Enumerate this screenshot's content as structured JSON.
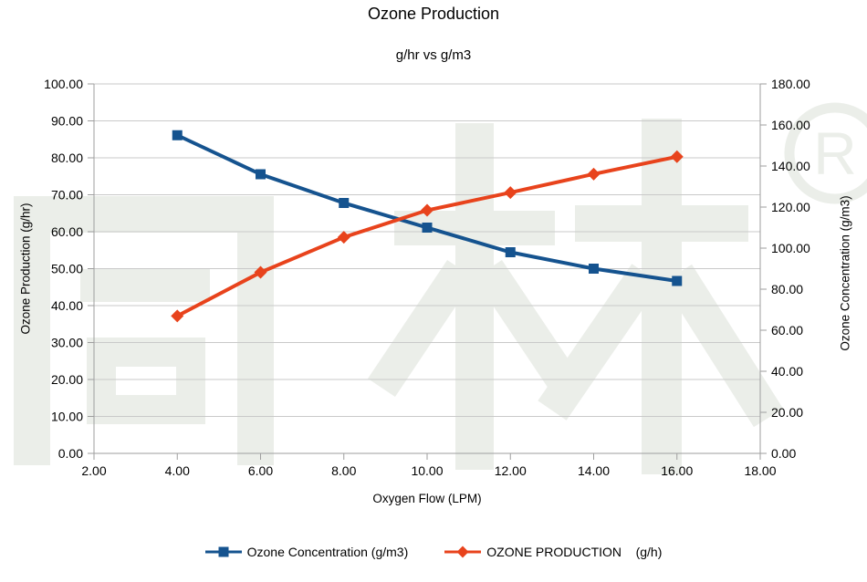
{
  "title": "Ozone Production",
  "subtitle": "g/hr vs g/m3",
  "watermark": {
    "text": "同林",
    "registered_mark": "R",
    "color": "#ebeee9"
  },
  "chart_data": {
    "type": "line",
    "title": "Ozone Production",
    "subtitle": "g/hr vs g/m3",
    "xlabel": "Oxygen Flow (LPM)",
    "grid": "horizontal",
    "legend_position": "bottom-center",
    "x": [
      4,
      6,
      8,
      10,
      12,
      14,
      16
    ],
    "x_axis": {
      "min": 2,
      "max": 18,
      "step": 2,
      "tick_labels": [
        "2.00",
        "4.00",
        "6.00",
        "8.00",
        "10.00",
        "12.00",
        "14.00",
        "16.00",
        "18.00"
      ]
    },
    "left_axis": {
      "label": "Ozone Production (g/hr)",
      "min": 0,
      "max": 100,
      "step": 10,
      "tick_labels": [
        "0.00",
        "10.00",
        "20.00",
        "30.00",
        "40.00",
        "50.00",
        "60.00",
        "70.00",
        "80.00",
        "90.00",
        "100.00"
      ]
    },
    "right_axis": {
      "label": "Ozone Concentration (g/m3)",
      "min": 0,
      "max": 180,
      "step": 20,
      "tick_labels": [
        "0.00",
        "20.00",
        "40.00",
        "60.00",
        "80.00",
        "100.00",
        "120.00",
        "140.00",
        "160.00",
        "180.00"
      ]
    },
    "series": [
      {
        "name": "Ozone Concentration (g/m3)",
        "axis": "right",
        "marker": "square",
        "color": "#15538f",
        "values": [
          155,
          136,
          122,
          110,
          98,
          90,
          84
        ]
      },
      {
        "name": "OZONE PRODUCTION    (g/h)",
        "axis": "left",
        "marker": "diamond",
        "color": "#e8431c",
        "values": [
          37.2,
          49.0,
          58.5,
          65.8,
          70.6,
          75.6,
          80.3
        ]
      }
    ],
    "colors": {
      "gridline": "#c9c9c9",
      "axis_line": "#9e9e9e",
      "tick_label": "#000000"
    }
  }
}
